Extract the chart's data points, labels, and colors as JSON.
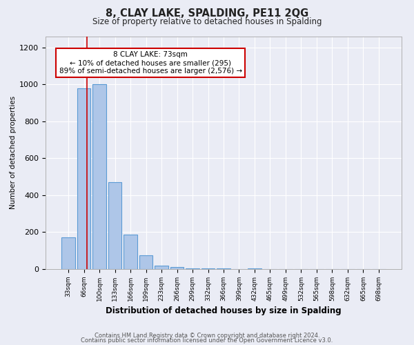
{
  "title": "8, CLAY LAKE, SPALDING, PE11 2QG",
  "subtitle": "Size of property relative to detached houses in Spalding",
  "xlabel": "Distribution of detached houses by size in Spalding",
  "ylabel": "Number of detached properties",
  "bar_labels": [
    "33sqm",
    "66sqm",
    "100sqm",
    "133sqm",
    "166sqm",
    "199sqm",
    "233sqm",
    "266sqm",
    "299sqm",
    "332sqm",
    "366sqm",
    "399sqm",
    "432sqm",
    "465sqm",
    "499sqm",
    "532sqm",
    "565sqm",
    "598sqm",
    "632sqm",
    "665sqm",
    "698sqm"
  ],
  "bar_values": [
    170,
    980,
    1000,
    470,
    185,
    75,
    20,
    10,
    5,
    2,
    5,
    0,
    5,
    0,
    0,
    0,
    0,
    0,
    0,
    0,
    0
  ],
  "bar_color": "#aec6e8",
  "bar_edge_color": "#5b9bd5",
  "background_color": "#eaecf5",
  "grid_color": "#ffffff",
  "annotation_text": "8 CLAY LAKE: 73sqm\n← 10% of detached houses are smaller (295)\n89% of semi-detached houses are larger (2,576) →",
  "annotation_box_color": "#ffffff",
  "annotation_box_edge_color": "#cc0000",
  "footer_line1": "Contains HM Land Registry data © Crown copyright and database right 2024.",
  "footer_line2": "Contains public sector information licensed under the Open Government Licence v3.0.",
  "ylim": [
    0,
    1260
  ],
  "yticks": [
    0,
    200,
    400,
    600,
    800,
    1000,
    1200
  ]
}
